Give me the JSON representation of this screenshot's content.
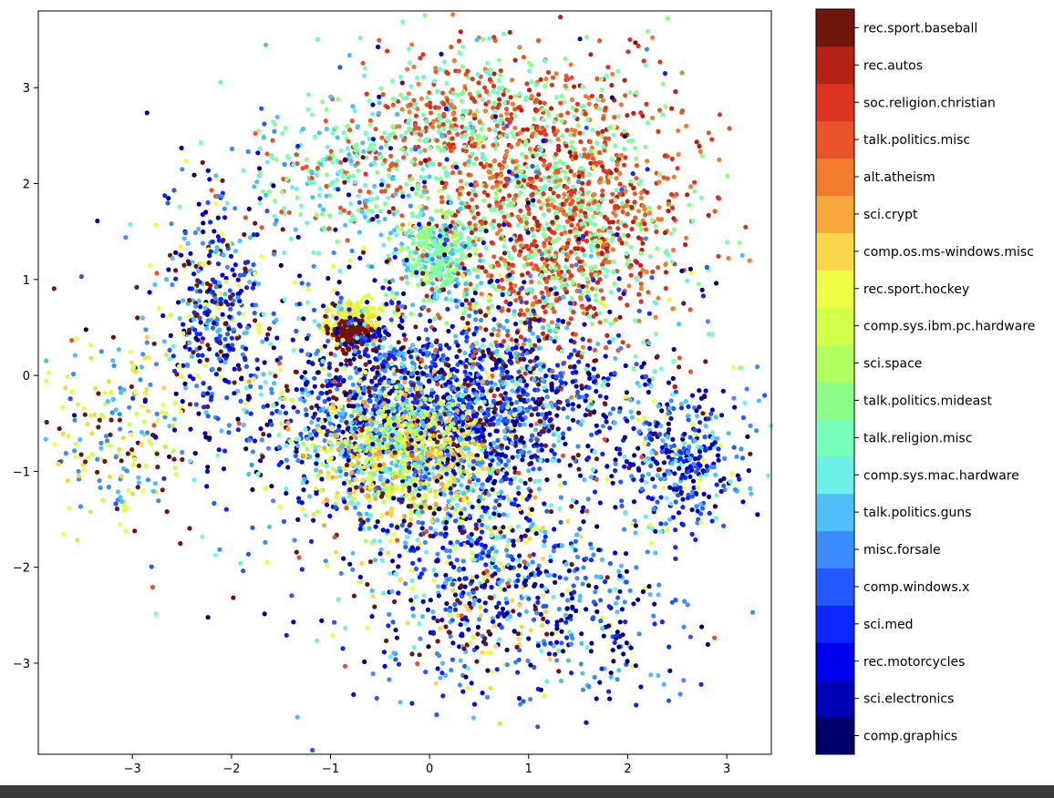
{
  "chart_data": {
    "type": "scatter",
    "title": "",
    "xlabel": "",
    "ylabel": "",
    "xlim": [
      -3.95,
      3.45
    ],
    "ylim": [
      -3.95,
      3.8
    ],
    "xticks": [
      -3,
      -2,
      -1,
      0,
      1,
      2,
      3
    ],
    "yticks": [
      -3,
      -2,
      -1,
      0,
      1,
      2,
      3
    ],
    "xtick_labels": [
      "−3",
      "−2",
      "−1",
      "0",
      "1",
      "2",
      "3"
    ],
    "ytick_labels": [
      "−3",
      "−2",
      "−1",
      "0",
      "1",
      "2",
      "3"
    ],
    "grid": false,
    "legend": "colorbar-right",
    "categories": [
      "comp.graphics",
      "sci.electronics",
      "rec.motorcycles",
      "sci.med",
      "comp.windows.x",
      "misc.forsale",
      "talk.politics.guns",
      "comp.sys.mac.hardware",
      "talk.religion.misc",
      "talk.politics.mideast",
      "sci.space",
      "comp.sys.ibm.pc.hardware",
      "rec.sport.hockey",
      "comp.os.ms-windows.misc",
      "sci.crypt",
      "alt.atheism",
      "talk.politics.misc",
      "soc.religion.christian",
      "rec.autos",
      "rec.sport.baseball"
    ],
    "category_colors": [
      "#00006d",
      "#0000b4",
      "#0000f0",
      "#0c26ff",
      "#2458ff",
      "#3c8cff",
      "#50befa",
      "#6cf0e8",
      "#78ffbc",
      "#8cff8a",
      "#b0ff60",
      "#d2ff4a",
      "#ecff44",
      "#fad64a",
      "#f8a83a",
      "#f07c2c",
      "#e8542a",
      "#dc3420",
      "#b42214",
      "#70150c"
    ],
    "point_size": 2.6,
    "clusters": [
      {
        "cats": [
          16,
          17,
          15,
          18,
          8,
          9
        ],
        "cx": 1.3,
        "cy": 1.7,
        "sx": 0.65,
        "sy": 0.75,
        "n": 1500
      },
      {
        "cats": [
          16,
          17,
          15,
          8,
          9,
          7
        ],
        "cx": 0.3,
        "cy": 2.7,
        "sx": 0.45,
        "sy": 0.35,
        "n": 350
      },
      {
        "cats": [
          8,
          9,
          10,
          6
        ],
        "cx": 0.05,
        "cy": 1.25,
        "sx": 0.18,
        "sy": 0.22,
        "n": 300
      },
      {
        "cats": [
          8,
          9,
          7,
          6,
          16
        ],
        "cx": -0.8,
        "cy": 2.1,
        "sx": 0.5,
        "sy": 0.35,
        "n": 300
      },
      {
        "cats": [
          12,
          11,
          13
        ],
        "cx": -0.78,
        "cy": 0.58,
        "sx": 0.14,
        "sy": 0.1,
        "n": 220
      },
      {
        "cats": [
          19
        ],
        "cx": -0.8,
        "cy": 0.42,
        "sx": 0.12,
        "sy": 0.08,
        "n": 150
      },
      {
        "cats": [
          0,
          1,
          2,
          3,
          4,
          5,
          6,
          19
        ],
        "cx": 0.1,
        "cy": -0.3,
        "sx": 0.9,
        "sy": 0.45,
        "n": 1600
      },
      {
        "cats": [
          12,
          11,
          13,
          14,
          6,
          7,
          10
        ],
        "cx": -0.3,
        "cy": -0.8,
        "sx": 0.45,
        "sy": 0.35,
        "n": 800
      },
      {
        "cats": [
          0,
          1,
          2,
          3,
          4,
          5,
          6,
          7,
          12,
          13,
          19
        ],
        "cx": 0.5,
        "cy": -2.0,
        "sx": 0.6,
        "sy": 0.6,
        "n": 700
      },
      {
        "cats": [
          0,
          1,
          2,
          3,
          4,
          5,
          12,
          19,
          6
        ],
        "cx": -2.2,
        "cy": 0.7,
        "sx": 0.25,
        "sy": 0.6,
        "n": 350
      },
      {
        "cats": [
          12,
          11,
          13,
          19,
          5,
          6
        ],
        "cx": -3.1,
        "cy": -0.6,
        "sx": 0.35,
        "sy": 0.45,
        "n": 200
      },
      {
        "cats": [
          0,
          1,
          2,
          3,
          4,
          5,
          7,
          6,
          12
        ],
        "cx": 2.5,
        "cy": -0.9,
        "sx": 0.35,
        "sy": 0.35,
        "n": 350
      },
      {
        "cats": [
          0,
          1,
          2,
          3,
          4,
          5,
          6,
          7,
          12,
          19,
          16,
          8
        ],
        "cx": 0.0,
        "cy": 0.0,
        "sx": 1.5,
        "sy": 1.4,
        "n": 900
      },
      {
        "cats": [
          3,
          4,
          5,
          6,
          0,
          1
        ],
        "cx": 1.7,
        "cy": -2.6,
        "sx": 0.45,
        "sy": 0.45,
        "n": 150
      }
    ]
  }
}
